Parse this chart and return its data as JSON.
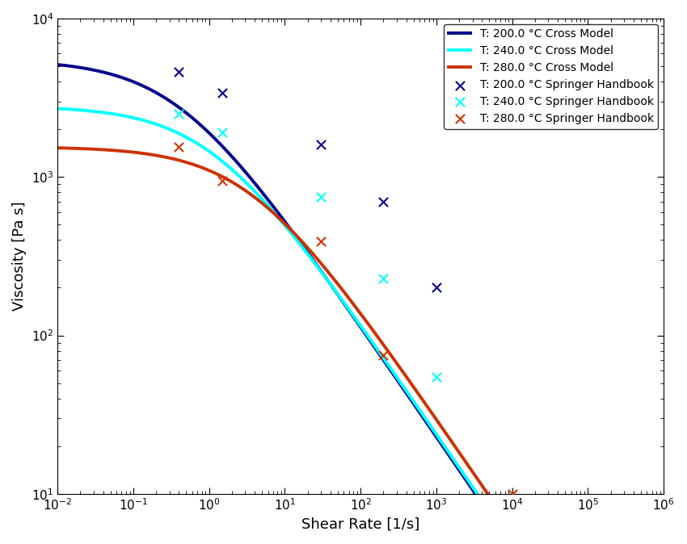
{
  "title": "",
  "xlabel": "Shear Rate [1/s]",
  "ylabel": "Viscosity [Pa s]",
  "xlim": [
    0.01,
    1000000.0
  ],
  "ylim": [
    10,
    10000.0
  ],
  "colors": {
    "200": "#00008B",
    "240": "#00FFFF",
    "280": "#CC3300"
  },
  "cross_model": {
    "200": {
      "eta0": 5500,
      "lambda": 2.5,
      "n": 0.3
    },
    "240": {
      "eta0": 2800,
      "lambda": 0.9,
      "n": 0.3
    },
    "280": {
      "eta0": 1550,
      "lambda": 0.28,
      "n": 0.3
    }
  },
  "springer_data": {
    "200": {
      "x": [
        0.4,
        1.5,
        30.0,
        200.0,
        1000.0
      ],
      "y": [
        4600,
        3400,
        1600,
        700,
        200
      ]
    },
    "240": {
      "x": [
        0.4,
        1.5,
        30.0,
        200.0,
        1000.0
      ],
      "y": [
        2500,
        1900,
        750,
        230,
        55
      ]
    },
    "280": {
      "x": [
        0.4,
        1.5,
        30.0,
        200.0,
        10000.0
      ],
      "y": [
        1550,
        950,
        390,
        75,
        10
      ]
    }
  },
  "line_width": 2.8,
  "marker_size": 8
}
